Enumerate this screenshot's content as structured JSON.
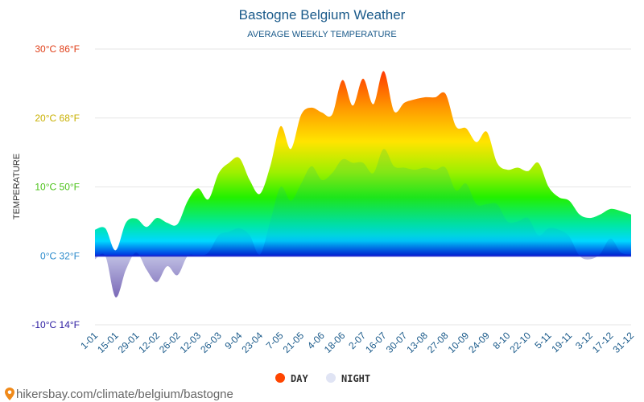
{
  "chart_data": {
    "type": "area",
    "title": "Bastogne Belgium Weather",
    "subtitle": "AVERAGE WEEKLY TEMPERATURE",
    "ylabel": "TEMPERATURE",
    "ylim": [
      -10,
      30
    ],
    "y_ticks": [
      {
        "value": 30,
        "label": "30°C 86°F",
        "color": "#e0401a"
      },
      {
        "value": 20,
        "label": "20°C 68°F",
        "color": "#c8b000"
      },
      {
        "value": 10,
        "label": "10°C 50°F",
        "color": "#4cc21a"
      },
      {
        "value": 0,
        "label": "0°C 32°F",
        "color": "#2a8acb"
      },
      {
        "value": -10,
        "label": "-10°C 14°F",
        "color": "#2a1aa0"
      }
    ],
    "x_tick_labels": [
      "1-01",
      "15-01",
      "29-01",
      "12-02",
      "26-02",
      "12-03",
      "26-03",
      "9-04",
      "23-04",
      "7-05",
      "21-05",
      "4-06",
      "18-06",
      "2-07",
      "16-07",
      "30-07",
      "13-08",
      "27-08",
      "10-09",
      "24-09",
      "8-10",
      "22-10",
      "5-11",
      "19-11",
      "3-12",
      "17-12",
      "31-12"
    ],
    "grid": true,
    "legend_position": "bottom-center",
    "series": [
      {
        "name": "DAY",
        "color": "#ff4500",
        "values": [
          3.8,
          4.0,
          0.8,
          4.8,
          5.4,
          4.2,
          5.5,
          4.8,
          4.6,
          8.0,
          9.8,
          8.2,
          12.0,
          13.5,
          14.2,
          11.0,
          9.0,
          13.0,
          18.8,
          15.5,
          20.5,
          21.5,
          20.8,
          20.5,
          25.5,
          21.8,
          25.7,
          22.0,
          26.8,
          21.0,
          22.2,
          22.7,
          23.0,
          23.0,
          23.5,
          18.8,
          18.5,
          16.5,
          18.0,
          13.5,
          12.5,
          12.8,
          12.3,
          13.5,
          10.0,
          8.5,
          8.0,
          6.0,
          5.5,
          6.0,
          6.8,
          6.5,
          6.0
        ]
      },
      {
        "name": "NIGHT",
        "color": "#e0e4f4",
        "values": [
          -0.5,
          0.0,
          -6.0,
          -2.0,
          0.5,
          -2.0,
          -3.8,
          -1.5,
          -2.8,
          0.0,
          0.0,
          0.5,
          3.0,
          3.5,
          4.0,
          3.0,
          0.2,
          5.0,
          10.0,
          8.0,
          10.5,
          13.0,
          11.0,
          12.0,
          14.0,
          13.5,
          13.5,
          12.0,
          15.5,
          13.0,
          12.8,
          12.5,
          12.8,
          12.5,
          12.8,
          9.5,
          10.5,
          7.5,
          7.5,
          7.5,
          5.0,
          5.0,
          5.5,
          3.0,
          4.0,
          3.8,
          2.8,
          0.0,
          -0.5,
          0.3,
          2.5,
          0.5,
          0.2
        ]
      }
    ]
  },
  "source": "hikersbay.com/climate/belgium/bastogne"
}
